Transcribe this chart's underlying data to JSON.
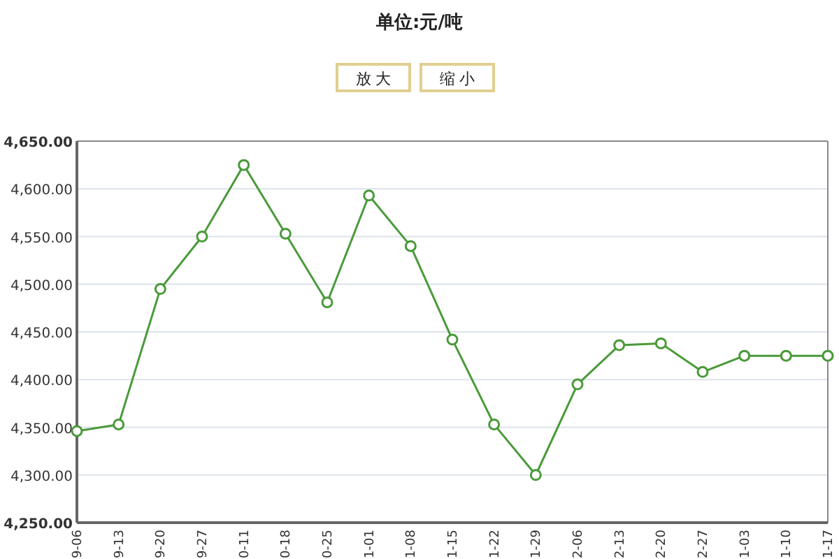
{
  "chart_data": {
    "type": "line",
    "title": "单位:元/吨",
    "annotations": [
      "放 大",
      "缩 小"
    ],
    "categories": [
      "9-06",
      "9-13",
      "9-20",
      "9-27",
      "0-11",
      "0-18",
      "0-25",
      "1-01",
      "1-08",
      "1-15",
      "1-22",
      "1-29",
      "2-06",
      "2-13",
      "2-20",
      "2-27",
      "1-03",
      "1-10",
      "1-17"
    ],
    "series": [
      {
        "color": "#4a9a3a",
        "values": [
          4346,
          4353,
          4495,
          4550,
          4625,
          4553,
          4481,
          4593,
          4540,
          4442,
          4353,
          4300,
          4395,
          4436,
          4438,
          4408,
          4425,
          4425,
          4425
        ]
      }
    ],
    "ylim": [
      4250,
      4650
    ],
    "yticks": [
      {
        "value": 4250,
        "label": "4,250.00"
      },
      {
        "value": 4300,
        "label": "4,300.00"
      },
      {
        "value": 4350,
        "label": "4,350.00"
      },
      {
        "value": 4400,
        "label": "4,400.00"
      },
      {
        "value": 4450,
        "label": "4,450.00"
      },
      {
        "value": 4500,
        "label": "4,500.00"
      },
      {
        "value": 4550,
        "label": "4,550.00"
      },
      {
        "value": 4600,
        "label": "4,600.00"
      },
      {
        "value": 4650,
        "label": "4,650.00"
      }
    ],
    "grid": "y",
    "marker": "circle",
    "line_style": "solid"
  }
}
